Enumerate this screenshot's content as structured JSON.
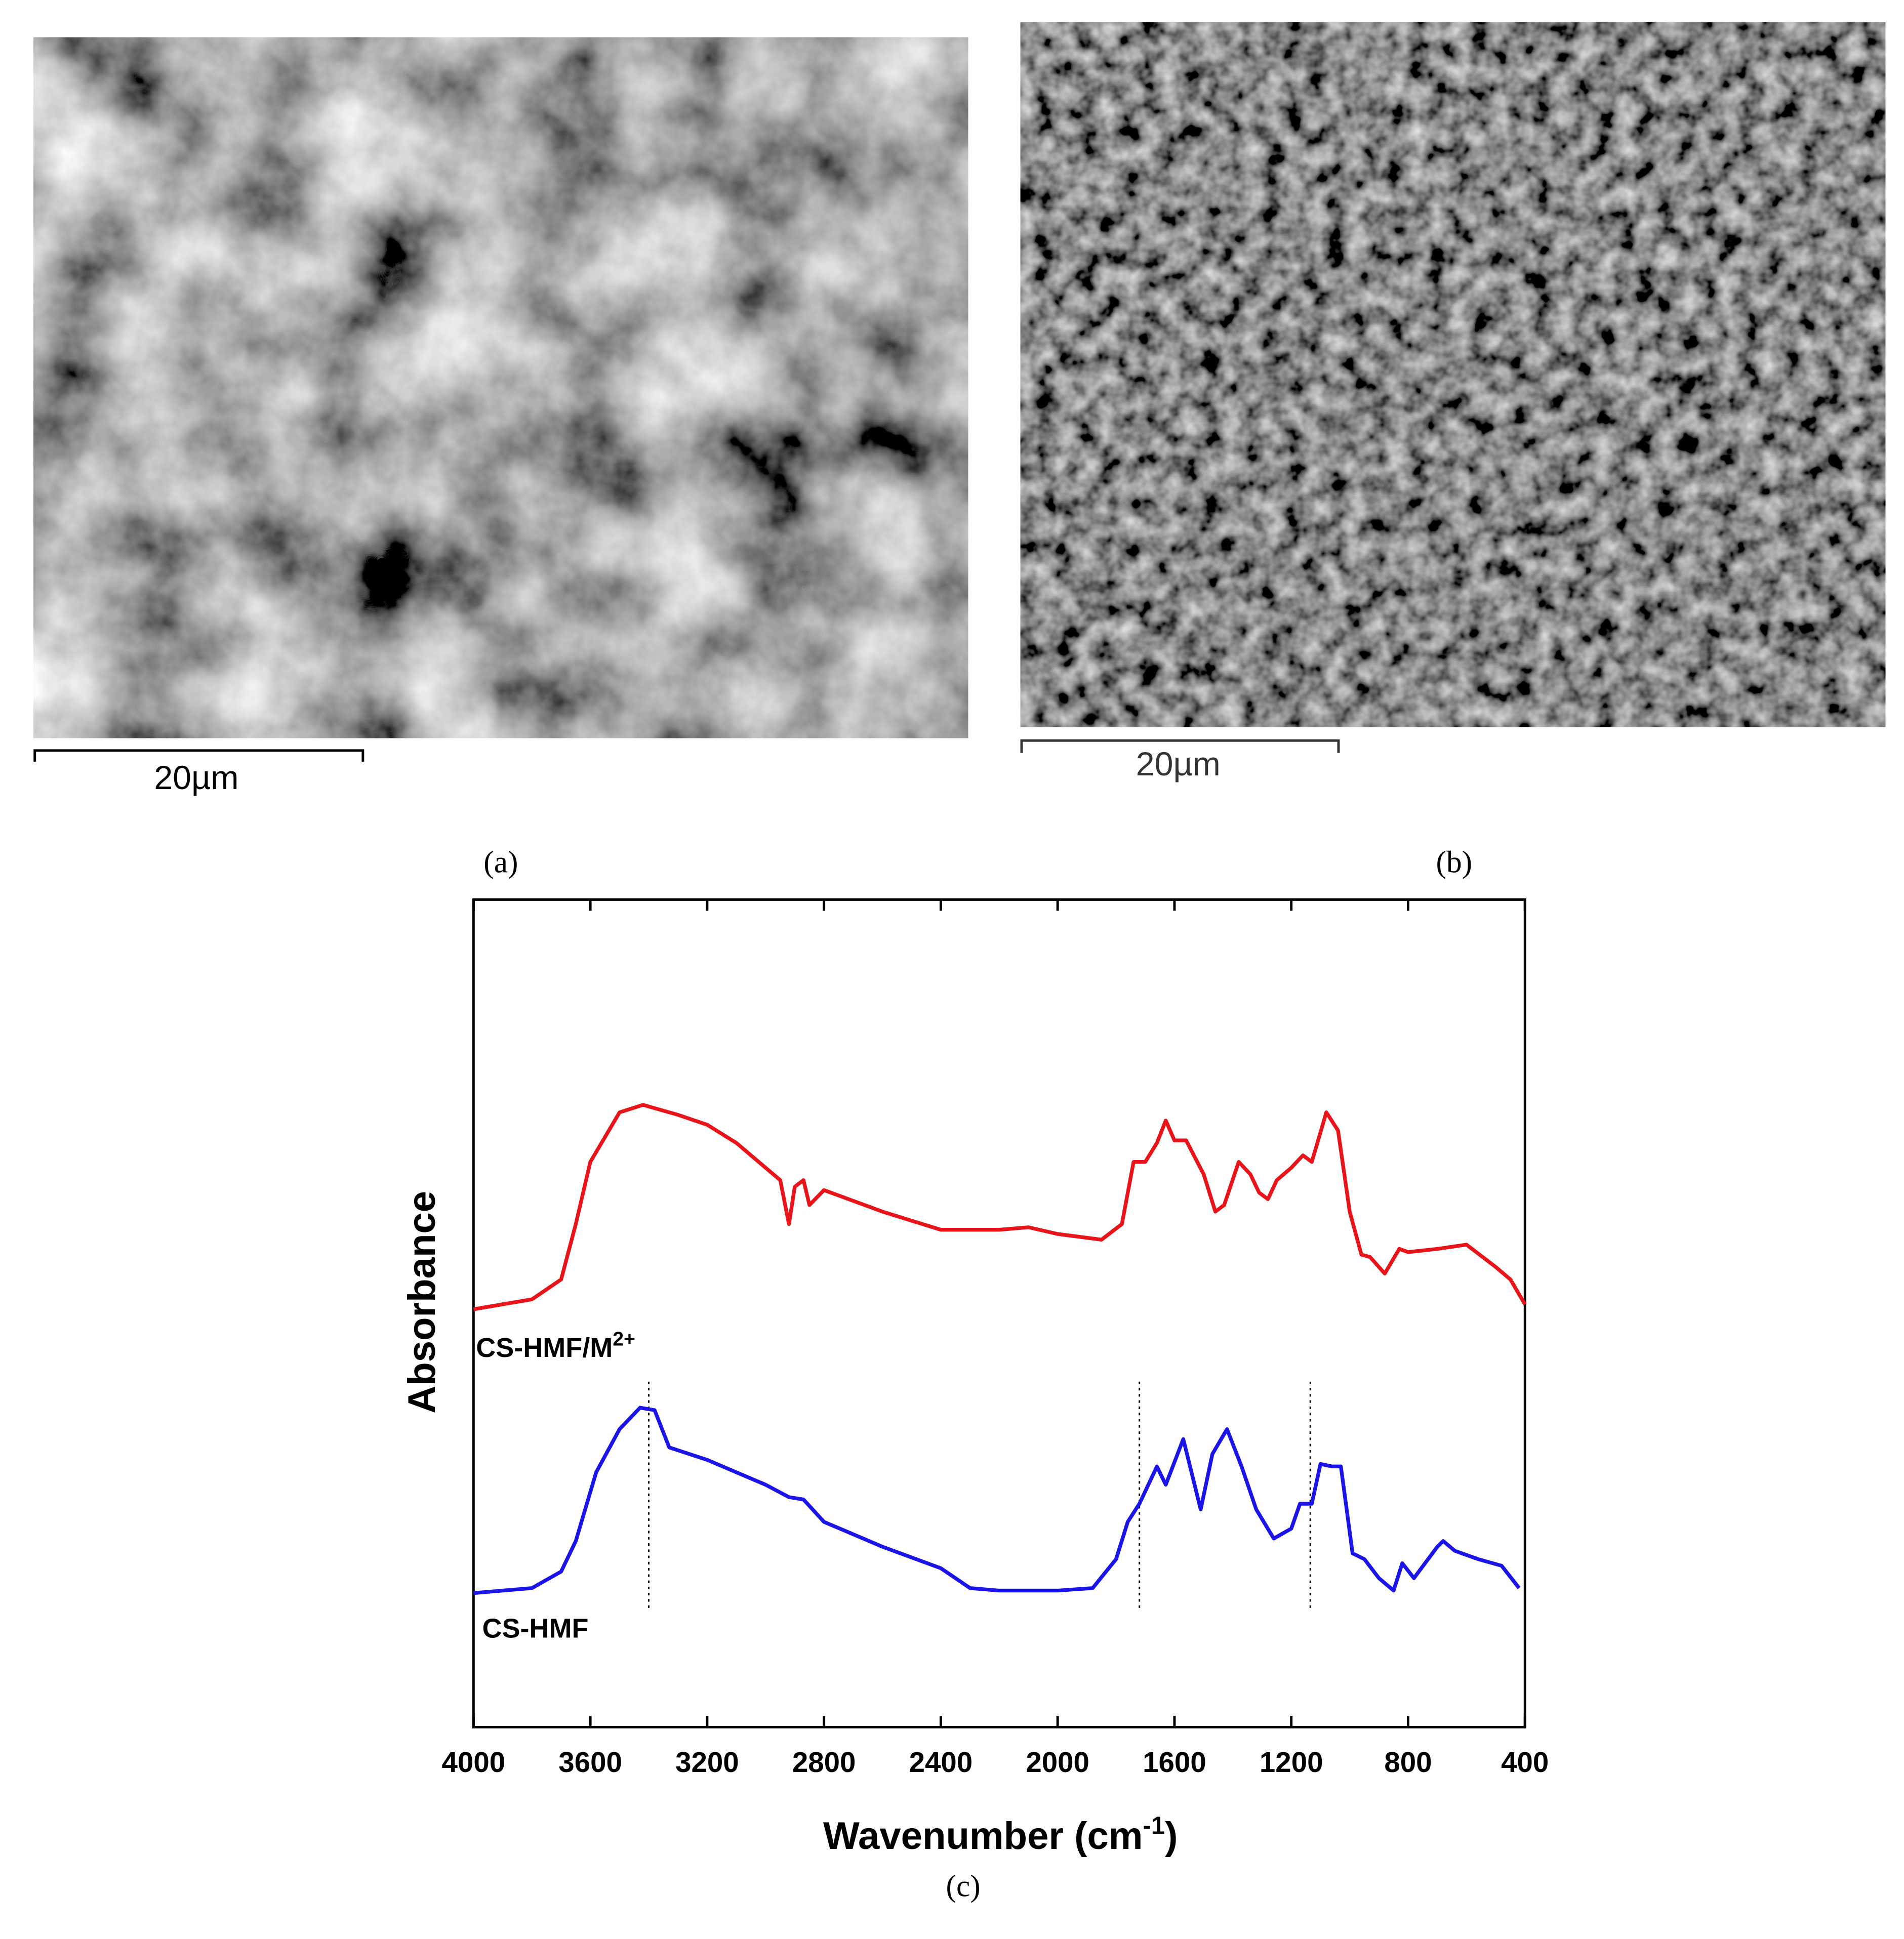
{
  "panels": {
    "a": {
      "label": "(a)",
      "scale_bar": "20µm"
    },
    "b": {
      "label": "(b)",
      "scale_bar": "20µm"
    }
  },
  "chart_data": {
    "type": "line",
    "label": "(c)",
    "ylabel": "Absorbance",
    "xlabel": {
      "text": "Wavenumber (cm",
      "sup": "-1",
      "close": ")"
    },
    "xlim": [
      4000,
      400
    ],
    "ylim": [
      0,
      100
    ],
    "xticks": [
      4000,
      3600,
      3200,
      2800,
      2400,
      2000,
      1600,
      1200,
      800,
      400
    ],
    "vlines": [
      3400,
      1720,
      1135
    ],
    "series": [
      {
        "name": {
          "text": "CS-HMF/M",
          "sup": "2+"
        },
        "color": "#e8141a",
        "x": [
          4000,
          3800,
          3700,
          3650,
          3600,
          3500,
          3420,
          3300,
          3200,
          3100,
          3000,
          2950,
          2920,
          2900,
          2870,
          2850,
          2800,
          2600,
          2400,
          2200,
          2100,
          2000,
          1850,
          1780,
          1740,
          1700,
          1660,
          1630,
          1600,
          1560,
          1500,
          1460,
          1430,
          1380,
          1340,
          1310,
          1280,
          1250,
          1200,
          1160,
          1130,
          1080,
          1040,
          1000,
          960,
          930,
          880,
          830,
          800,
          700,
          600,
          500,
          450,
          400
        ],
        "values": [
          50.5,
          51.7,
          54.1,
          60.8,
          68.3,
          74.3,
          75.2,
          74.0,
          72.8,
          70.6,
          67.6,
          66.1,
          60.8,
          65.3,
          66.1,
          63.1,
          64.9,
          62.3,
          60.1,
          60.1,
          60.4,
          59.6,
          58.9,
          60.8,
          68.3,
          68.3,
          70.6,
          73.3,
          70.9,
          70.9,
          66.8,
          62.3,
          63.1,
          68.3,
          66.8,
          64.6,
          63.8,
          66.1,
          67.6,
          69.1,
          68.3,
          74.3,
          72.1,
          62.3,
          57.1,
          56.8,
          54.8,
          57.8,
          57.4,
          57.8,
          58.3,
          55.6,
          54.1,
          51.1
        ]
      },
      {
        "name": {
          "text": "CS-HMF"
        },
        "color": "#1a14e8",
        "x": [
          4000,
          3800,
          3700,
          3650,
          3580,
          3500,
          3430,
          3380,
          3330,
          3200,
          3000,
          2920,
          2870,
          2800,
          2600,
          2400,
          2300,
          2200,
          2000,
          1880,
          1800,
          1760,
          1720,
          1660,
          1630,
          1570,
          1510,
          1470,
          1420,
          1370,
          1320,
          1260,
          1200,
          1170,
          1130,
          1100,
          1060,
          1030,
          990,
          950,
          900,
          850,
          820,
          780,
          700,
          680,
          640,
          560,
          480,
          420
        ],
        "values": [
          16.2,
          16.8,
          18.8,
          22.5,
          30.8,
          36.0,
          38.6,
          38.3,
          33.8,
          32.3,
          29.3,
          27.8,
          27.5,
          24.8,
          21.8,
          19.2,
          16.8,
          16.5,
          16.5,
          16.8,
          20.3,
          24.8,
          27.0,
          31.5,
          29.3,
          34.8,
          26.3,
          33.0,
          36.0,
          31.5,
          26.3,
          22.8,
          24.0,
          27.0,
          27.0,
          31.8,
          31.5,
          31.5,
          21.0,
          20.3,
          18.0,
          16.5,
          19.8,
          18.0,
          21.8,
          22.5,
          21.3,
          20.3,
          19.5,
          16.8
        ]
      }
    ]
  }
}
